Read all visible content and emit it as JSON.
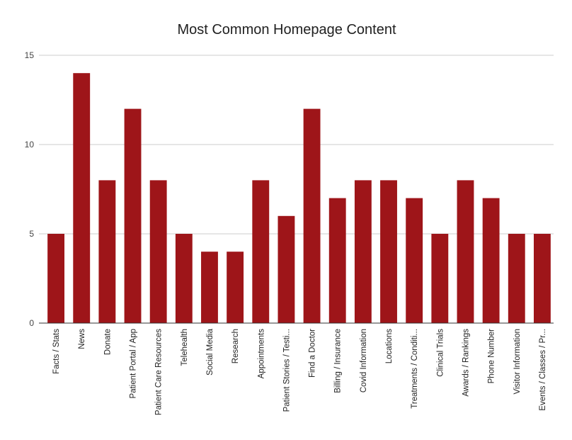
{
  "chart_data": {
    "type": "bar",
    "title": "Most Common Homepage Content",
    "xlabel": "",
    "ylabel": "",
    "ylim": [
      0,
      15
    ],
    "yticks": [
      0,
      5,
      10,
      15
    ],
    "grid": true,
    "bar_color": "#9e1519",
    "categories": [
      "Facts / Stats",
      "News",
      "Donate",
      "Patient Portal / App",
      "Patient Care Resources",
      "Telehealth",
      "Social Media",
      "Research",
      "Appointments",
      "Patient Stories / Testi...",
      "Find a Doctor",
      "Billing / Insurance",
      "Covid Information",
      "Locations",
      "Treatments / Conditi...",
      "Clinical Trials",
      "Awards / Rankings",
      "Phone Number",
      "Visitor Information",
      "Events / Classes / Pr..."
    ],
    "values": [
      5,
      14,
      8,
      12,
      8,
      5,
      4,
      4,
      8,
      6,
      12,
      7,
      8,
      8,
      7,
      5,
      8,
      7,
      5,
      5
    ]
  }
}
